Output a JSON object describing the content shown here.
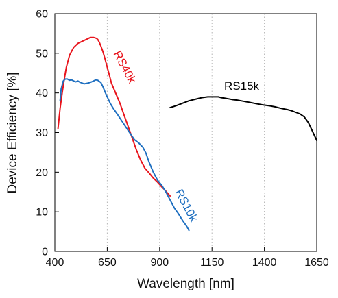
{
  "chart_data": {
    "type": "line",
    "title": "",
    "xlabel": "Wavelength [nm]",
    "ylabel": "Device Efficiency [%]",
    "xlim": [
      400,
      1650
    ],
    "ylim": [
      0,
      60
    ],
    "x_ticks": [
      400,
      650,
      900,
      1150,
      1400,
      1650
    ],
    "x_tick_labels": [
      "400",
      "650",
      "900",
      "1150",
      "1400",
      "1650"
    ],
    "y_ticks": [
      0,
      10,
      20,
      30,
      40,
      50,
      60
    ],
    "y_tick_labels": [
      "0",
      "10",
      "20",
      "30",
      "40",
      "50",
      "60"
    ],
    "grid": "vertical dotted",
    "legend": "none; series labelled inline next to curves",
    "colors": {
      "RS40k": "#e8141c",
      "RS10k": "#1e6fc0",
      "RS15k": "#000000"
    },
    "series": [
      {
        "name": "RS40k",
        "x": [
          415,
          425,
          435,
          445,
          455,
          470,
          490,
          510,
          530,
          550,
          570,
          585,
          598,
          605,
          612,
          620,
          630,
          640,
          650,
          660,
          670,
          690,
          710,
          730,
          750,
          770,
          790,
          810,
          830,
          850,
          870,
          890,
          910,
          930,
          950
        ],
        "y": [
          31,
          36,
          40,
          43.5,
          46.5,
          49.5,
          51.5,
          52.5,
          53,
          53.5,
          54,
          54,
          53.8,
          53.5,
          52.8,
          51.8,
          50.3,
          48.5,
          46.5,
          44.5,
          42.5,
          40,
          37.5,
          34.5,
          31.5,
          28.5,
          25.5,
          23,
          21,
          19.8,
          18.5,
          17.5,
          16.3,
          15.2,
          14
        ]
      },
      {
        "name": "RS10k",
        "x": [
          425,
          430,
          440,
          450,
          460,
          470,
          480,
          490,
          500,
          510,
          520,
          540,
          560,
          575,
          585,
          595,
          605,
          620,
          630,
          640,
          650,
          665,
          680,
          700,
          725,
          750,
          780,
          800,
          820,
          835,
          850,
          870,
          890,
          910,
          930,
          950,
          970,
          990,
          1010,
          1030,
          1040
        ],
        "y": [
          38,
          41,
          43,
          43.5,
          43.5,
          43.2,
          43.3,
          43,
          42.8,
          43,
          42.7,
          42.3,
          42.5,
          42.8,
          43,
          43.3,
          43.2,
          42.6,
          41.5,
          40.2,
          39,
          37.3,
          36,
          34.5,
          32.5,
          30.5,
          28.2,
          27.4,
          26.3,
          24.8,
          22.5,
          20,
          18,
          16.7,
          15,
          13,
          11,
          9.5,
          7.8,
          6.3,
          5.3
        ]
      },
      {
        "name": "RS15k",
        "x": [
          950,
          980,
          1010,
          1040,
          1070,
          1100,
          1130,
          1150,
          1165,
          1180,
          1195,
          1210,
          1230,
          1250,
          1270,
          1300,
          1330,
          1360,
          1390,
          1420,
          1450,
          1480,
          1510,
          1530,
          1550,
          1570,
          1590,
          1610,
          1630,
          1650
        ],
        "y": [
          36.3,
          36.8,
          37.4,
          38,
          38.4,
          38.8,
          39,
          39,
          39,
          39,
          38.8,
          38.7,
          38.5,
          38.3,
          38.2,
          37.9,
          37.6,
          37.3,
          37,
          36.8,
          36.5,
          36.1,
          35.8,
          35.5,
          35.1,
          34.7,
          34,
          32.5,
          30.3,
          28
        ]
      }
    ],
    "annotations": [
      {
        "text": "RS40k",
        "series": "RS40k"
      },
      {
        "text": "RS10k",
        "series": "RS10k"
      },
      {
        "text": "RS15k",
        "series": "RS15k"
      }
    ]
  }
}
